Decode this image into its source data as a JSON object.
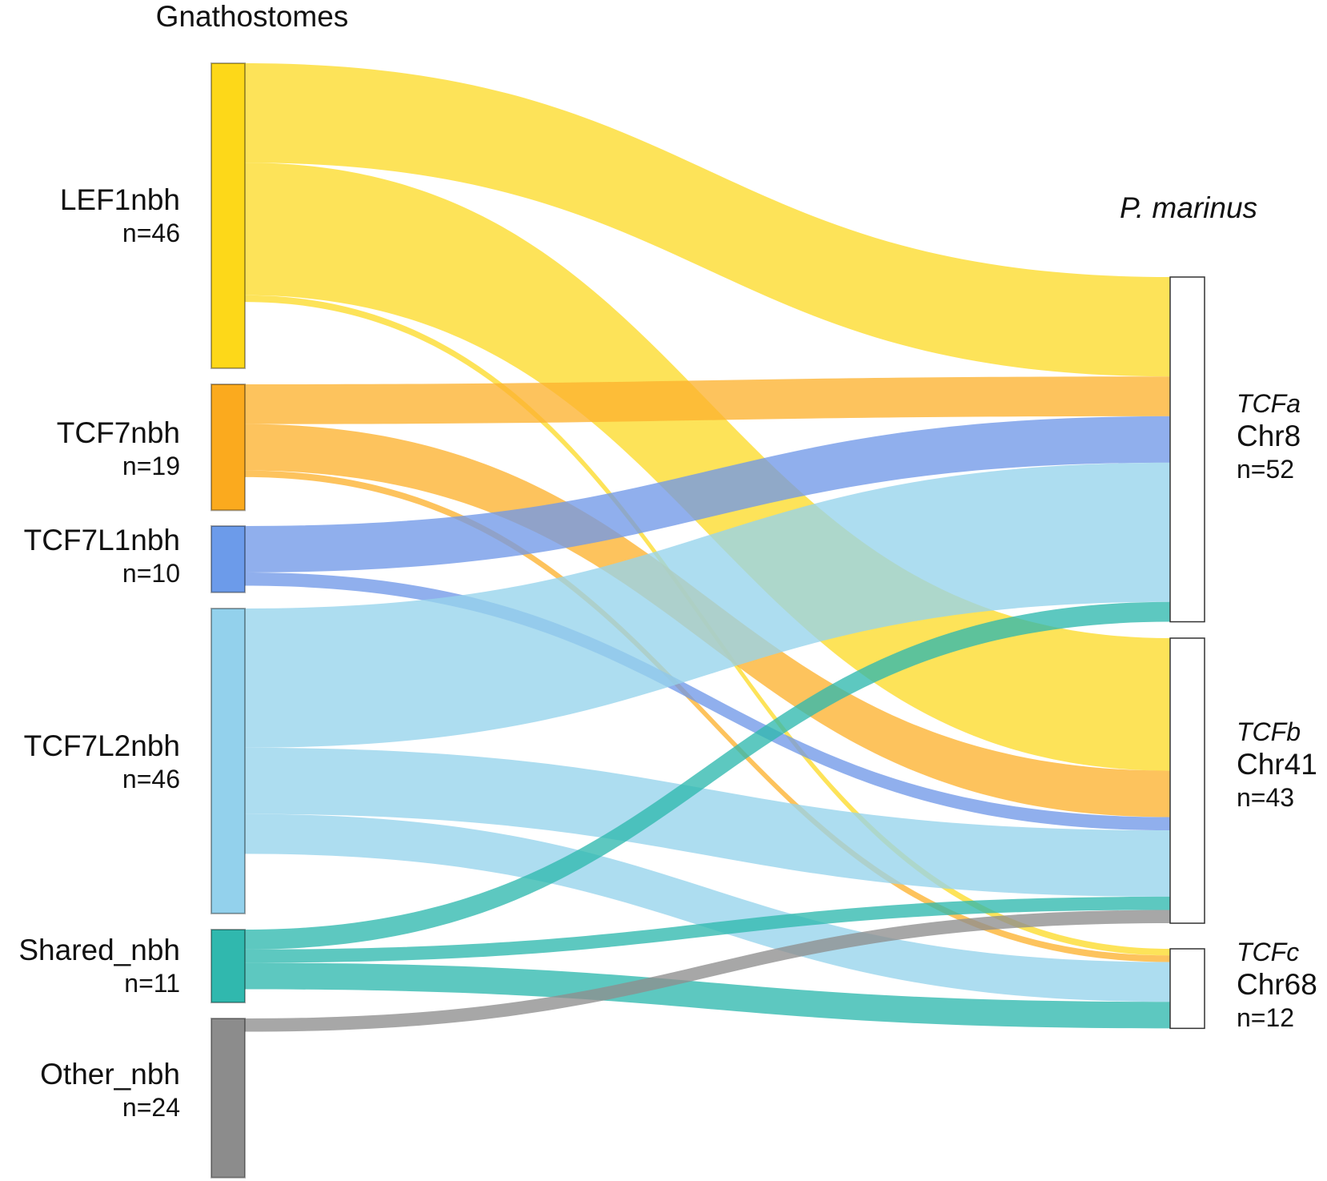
{
  "chart_data": {
    "type": "sankey",
    "left_title": "Gnathostomes",
    "right_title": "P. marinus",
    "left_nodes": [
      {
        "id": "LEF1",
        "label": "LEF1nbh",
        "count_label": "n=46",
        "n": 46,
        "color": "#FDD819"
      },
      {
        "id": "TCF7",
        "label": "TCF7nbh",
        "count_label": "n=19",
        "n": 19,
        "color": "#FBAA1E"
      },
      {
        "id": "TCF7L1",
        "label": "TCF7L1nbh",
        "count_label": "n=10",
        "n": 10,
        "color": "#6C9BEA"
      },
      {
        "id": "TCF7L2",
        "label": "TCF7L2nbh",
        "count_label": "n=46",
        "n": 46,
        "color": "#93D1EC"
      },
      {
        "id": "Shared",
        "label": "Shared_nbh",
        "count_label": "n=11",
        "n": 11,
        "color": "#30B8AE"
      },
      {
        "id": "Other",
        "label": "Other_nbh",
        "count_label": "n=24",
        "n": 24,
        "color": "#8C8C8C"
      }
    ],
    "right_nodes": [
      {
        "id": "TCFa",
        "gene": "TCFa",
        "chr": "Chr8",
        "count_label": "n=52",
        "n": 52
      },
      {
        "id": "TCFb",
        "gene": "TCFb",
        "chr": "Chr41",
        "count_label": "n=43",
        "n": 43
      },
      {
        "id": "TCFc",
        "gene": "TCFc",
        "chr": "Chr68",
        "count_label": "n=12",
        "n": 12
      }
    ],
    "flows": [
      {
        "source": "LEF1",
        "target": "TCFa",
        "value": 15
      },
      {
        "source": "LEF1",
        "target": "TCFb",
        "value": 20
      },
      {
        "source": "LEF1",
        "target": "TCFc",
        "value": 1
      },
      {
        "source": "TCF7",
        "target": "TCFa",
        "value": 6
      },
      {
        "source": "TCF7",
        "target": "TCFb",
        "value": 7
      },
      {
        "source": "TCF7",
        "target": "TCFc",
        "value": 1
      },
      {
        "source": "TCF7L1",
        "target": "TCFa",
        "value": 7
      },
      {
        "source": "TCF7L1",
        "target": "TCFb",
        "value": 2
      },
      {
        "source": "TCF7L2",
        "target": "TCFa",
        "value": 21
      },
      {
        "source": "TCF7L2",
        "target": "TCFb",
        "value": 10
      },
      {
        "source": "TCF7L2",
        "target": "TCFc",
        "value": 6
      },
      {
        "source": "Shared",
        "target": "TCFa",
        "value": 3
      },
      {
        "source": "Shared",
        "target": "TCFb",
        "value": 2
      },
      {
        "source": "Shared",
        "target": "TCFc",
        "value": 4
      },
      {
        "source": "Other",
        "target": "TCFb",
        "value": 2
      }
    ],
    "flow_colors": {
      "LEF1": "#FDDB2A",
      "TCF7": "#FDB22F",
      "TCF7L1": "#7199E8",
      "TCF7L2": "#96D3EC",
      "Shared": "#2FB9AE",
      "Other": "#8E8E8E"
    }
  }
}
